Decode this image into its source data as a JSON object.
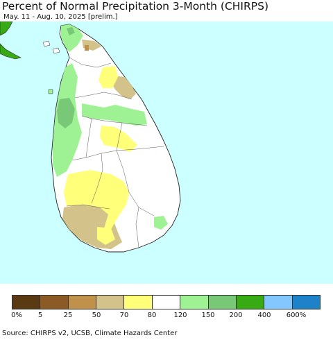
{
  "header": {
    "title": "Percent of Normal Precipitation 3-Month (CHIRPS)",
    "subtitle": "May. 11 - Aug. 10, 2025 [prelim.]"
  },
  "legend": {
    "colors": [
      "#5a3a12",
      "#8c5a24",
      "#c0914a",
      "#d3c289",
      "#ffff7a",
      "#ffffff",
      "#9ef294",
      "#78c878",
      "#37aa14",
      "#82c8ff",
      "#1e82c8"
    ],
    "labels": [
      "0%",
      "5",
      "25",
      "50",
      "70",
      "80",
      "120",
      "150",
      "200",
      "400",
      "600%"
    ]
  },
  "map": {
    "ocean_color": "#ccffff",
    "land_color": "#ffffff",
    "mainland_color": "#4cb83a"
  },
  "footer": {
    "source": "Source: CHIRPS v2, UCSB, Climate Hazards Center"
  }
}
